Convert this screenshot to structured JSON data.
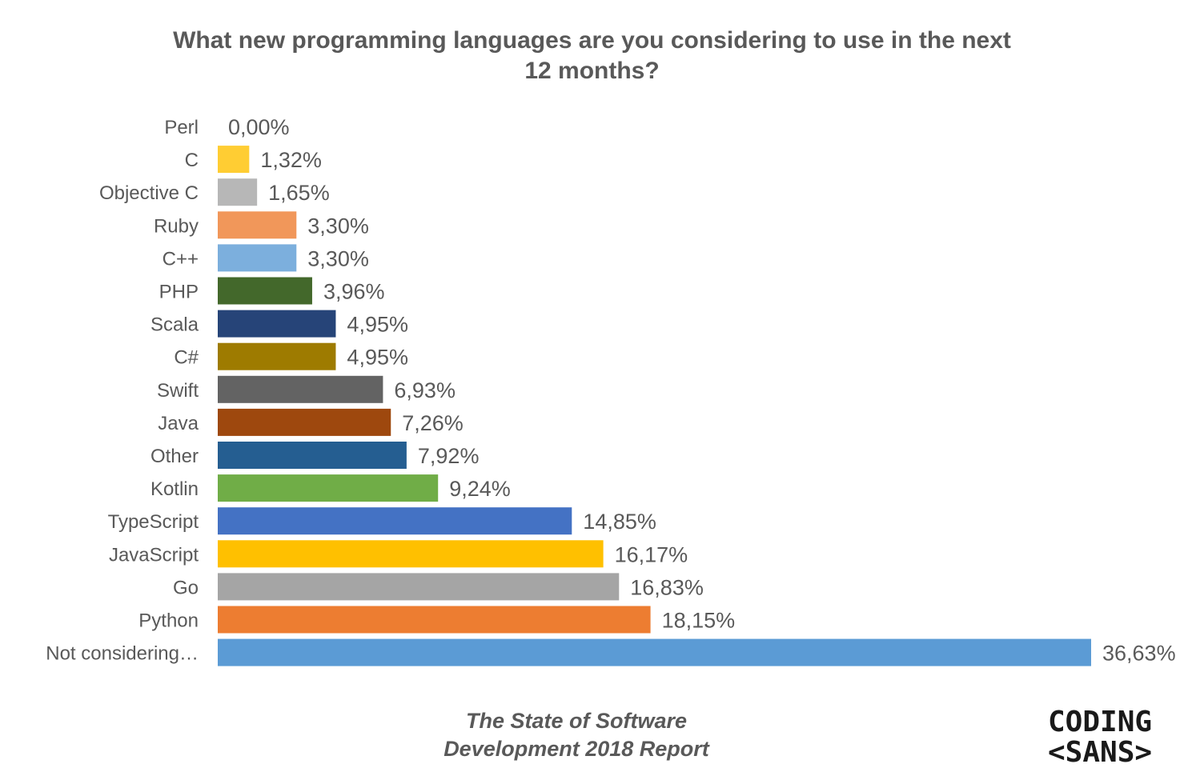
{
  "chart_data": {
    "type": "bar",
    "orientation": "horizontal",
    "title_lines": [
      "What new programming languages are you considering to use in the next",
      "12 months?"
    ],
    "categories": [
      "Perl",
      "C",
      "Objective C",
      "Ruby",
      "C++",
      "PHP",
      "Scala",
      "C#",
      "Swift",
      "Java",
      "Other",
      "Kotlin",
      "TypeScript",
      "JavaScript",
      "Go",
      "Python",
      "Not considering…"
    ],
    "values": [
      0.0,
      1.32,
      1.65,
      3.3,
      3.3,
      3.96,
      4.95,
      4.95,
      6.93,
      7.26,
      7.92,
      9.24,
      14.85,
      16.17,
      16.83,
      18.15,
      36.63
    ],
    "value_labels": [
      "0,00%",
      "1,32%",
      "1,65%",
      "3,30%",
      "3,30%",
      "3,96%",
      "4,95%",
      "4,95%",
      "6,93%",
      "7,26%",
      "7,92%",
      "9,24%",
      "14,85%",
      "16,17%",
      "16,83%",
      "18,15%",
      "36,63%"
    ],
    "colors": [
      "#A5A5A5",
      "#FFCD33",
      "#B7B7B7",
      "#F1975A",
      "#7CAFDD",
      "#43682B",
      "#264478",
      "#9E7B00",
      "#636363",
      "#9E480E",
      "#255E91",
      "#70AD47",
      "#4472C4",
      "#FFC000",
      "#A5A5A5",
      "#ED7D31",
      "#5B9BD5"
    ],
    "xlim": [
      0,
      36.63
    ],
    "grid": false,
    "legend": "none"
  },
  "footer": {
    "line1": "The State of Software",
    "line2": "Development 2018 Report"
  },
  "logo": {
    "line1": "CODING",
    "line2": "<SANS>"
  }
}
